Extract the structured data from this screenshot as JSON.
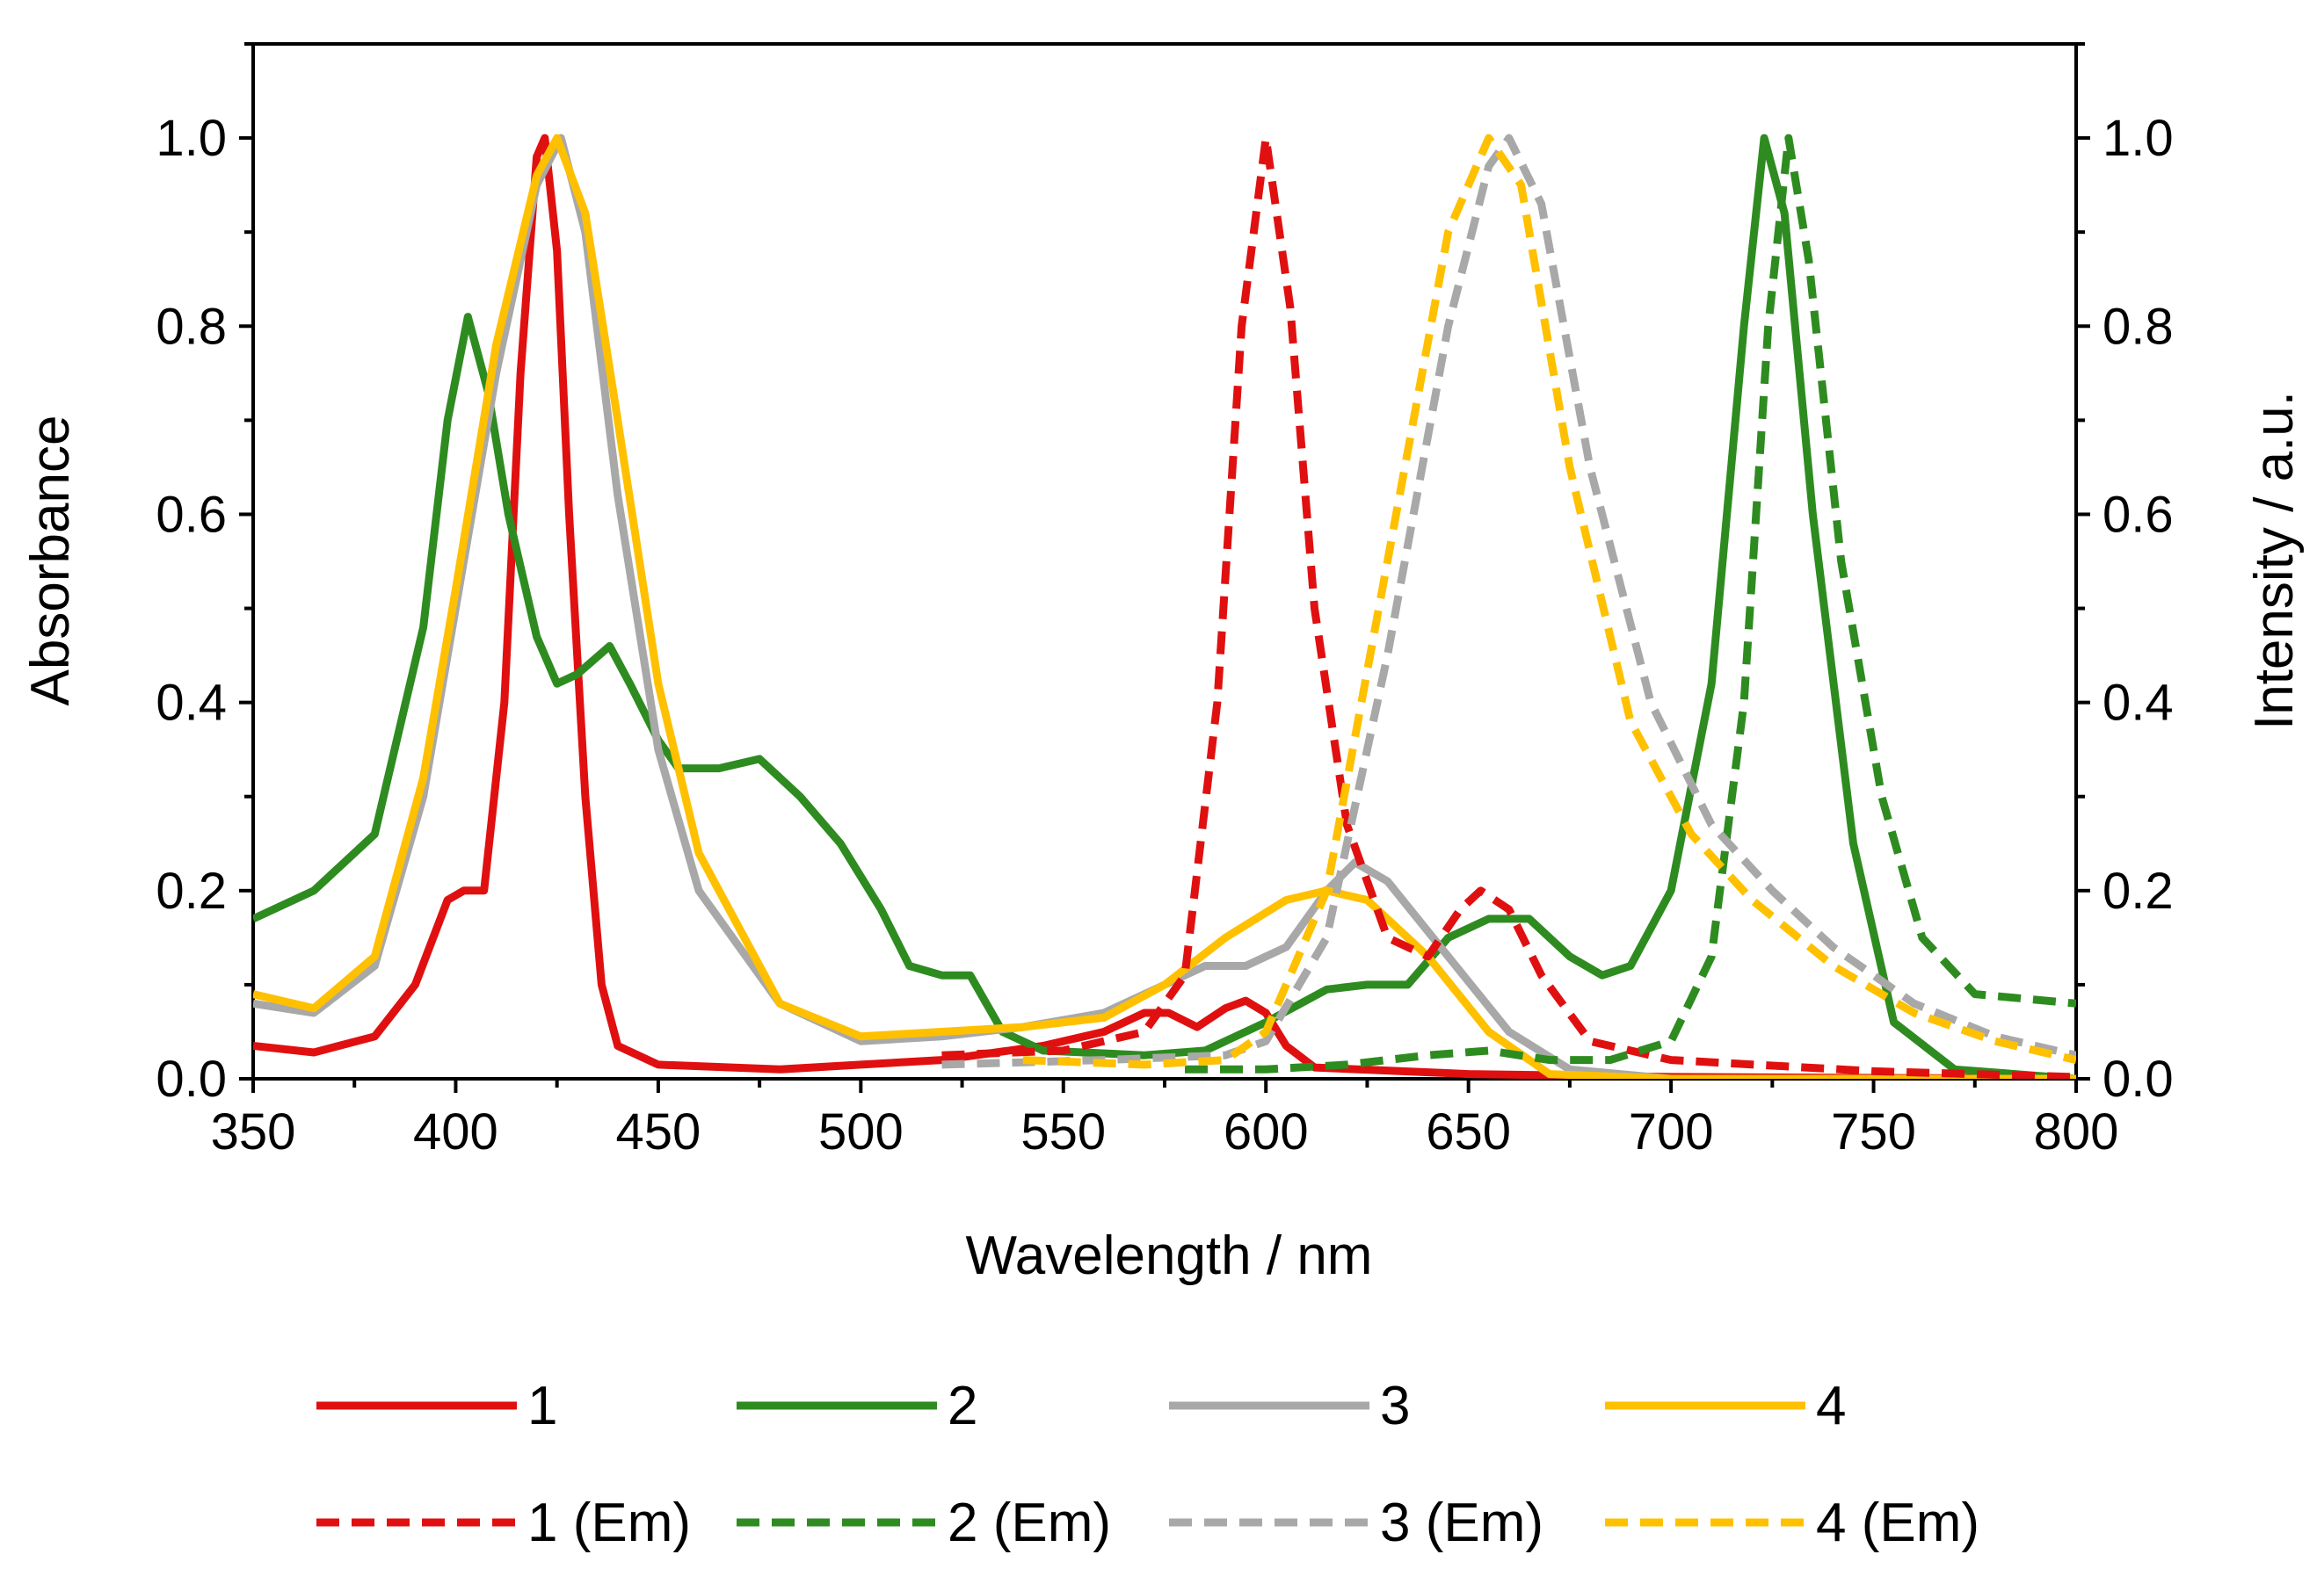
{
  "chart_data": {
    "type": "line",
    "title": "",
    "xlabel": "Wavelength / nm",
    "ylabel": "Absorbance",
    "y2label": "Intensity / a.u.",
    "xlim": [
      350,
      800
    ],
    "ylim": [
      0,
      1.1
    ],
    "y2lim": [
      0,
      1.1
    ],
    "xticks": [
      "350",
      "400",
      "450",
      "500",
      "550",
      "600",
      "650",
      "700",
      "750",
      "800"
    ],
    "yticks": [
      "0.0",
      "0.2",
      "0.4",
      "0.6",
      "0.8",
      "1.0"
    ],
    "y2ticks": [
      "0.0",
      "0.2",
      "0.4",
      "0.6",
      "0.8",
      "1.0"
    ],
    "grid": false,
    "legend_position": "bottom",
    "series": [
      {
        "name": "1",
        "style": "solid",
        "color": "#e01010",
        "axis": "left",
        "points": [
          [
            350,
            0.035
          ],
          [
            365,
            0.028
          ],
          [
            380,
            0.045
          ],
          [
            390,
            0.1
          ],
          [
            398,
            0.19
          ],
          [
            402,
            0.2
          ],
          [
            407,
            0.2
          ],
          [
            412,
            0.4
          ],
          [
            416,
            0.75
          ],
          [
            420,
            0.98
          ],
          [
            422,
            1.0
          ],
          [
            425,
            0.88
          ],
          [
            428,
            0.6
          ],
          [
            432,
            0.3
          ],
          [
            436,
            0.1
          ],
          [
            440,
            0.035
          ],
          [
            450,
            0.015
          ],
          [
            480,
            0.01
          ],
          [
            500,
            0.015
          ],
          [
            520,
            0.02
          ],
          [
            545,
            0.035
          ],
          [
            560,
            0.05
          ],
          [
            570,
            0.07
          ],
          [
            576,
            0.07
          ],
          [
            583,
            0.055
          ],
          [
            590,
            0.075
          ],
          [
            595,
            0.083
          ],
          [
            600,
            0.07
          ],
          [
            605,
            0.035
          ],
          [
            612,
            0.012
          ],
          [
            650,
            0.005
          ],
          [
            700,
            0.002
          ],
          [
            800,
            0.0
          ]
        ]
      },
      {
        "name": "2",
        "style": "solid",
        "color": "#2e8b20",
        "axis": "left",
        "points": [
          [
            350,
            0.17
          ],
          [
            365,
            0.2
          ],
          [
            380,
            0.26
          ],
          [
            392,
            0.48
          ],
          [
            398,
            0.7
          ],
          [
            403,
            0.81
          ],
          [
            408,
            0.73
          ],
          [
            413,
            0.6
          ],
          [
            420,
            0.47
          ],
          [
            425,
            0.42
          ],
          [
            430,
            0.43
          ],
          [
            438,
            0.46
          ],
          [
            443,
            0.42
          ],
          [
            450,
            0.36
          ],
          [
            455,
            0.33
          ],
          [
            465,
            0.33
          ],
          [
            475,
            0.34
          ],
          [
            485,
            0.3
          ],
          [
            495,
            0.25
          ],
          [
            505,
            0.18
          ],
          [
            512,
            0.12
          ],
          [
            520,
            0.11
          ],
          [
            527,
            0.11
          ],
          [
            535,
            0.05
          ],
          [
            545,
            0.03
          ],
          [
            570,
            0.025
          ],
          [
            585,
            0.03
          ],
          [
            600,
            0.06
          ],
          [
            615,
            0.095
          ],
          [
            625,
            0.1
          ],
          [
            635,
            0.1
          ],
          [
            645,
            0.15
          ],
          [
            655,
            0.17
          ],
          [
            665,
            0.17
          ],
          [
            675,
            0.13
          ],
          [
            683,
            0.11
          ],
          [
            690,
            0.12
          ],
          [
            700,
            0.2
          ],
          [
            710,
            0.42
          ],
          [
            718,
            0.8
          ],
          [
            723,
            1.0
          ],
          [
            728,
            0.92
          ],
          [
            735,
            0.6
          ],
          [
            745,
            0.25
          ],
          [
            755,
            0.06
          ],
          [
            770,
            0.01
          ],
          [
            800,
            0.0
          ]
        ]
      },
      {
        "name": "3",
        "style": "solid",
        "color": "#a8a8a8",
        "axis": "left",
        "points": [
          [
            350,
            0.08
          ],
          [
            365,
            0.07
          ],
          [
            380,
            0.12
          ],
          [
            392,
            0.3
          ],
          [
            400,
            0.5
          ],
          [
            410,
            0.75
          ],
          [
            420,
            0.95
          ],
          [
            426,
            1.0
          ],
          [
            432,
            0.9
          ],
          [
            440,
            0.62
          ],
          [
            450,
            0.35
          ],
          [
            460,
            0.2
          ],
          [
            480,
            0.08
          ],
          [
            500,
            0.04
          ],
          [
            520,
            0.045
          ],
          [
            540,
            0.055
          ],
          [
            560,
            0.07
          ],
          [
            575,
            0.1
          ],
          [
            585,
            0.12
          ],
          [
            595,
            0.12
          ],
          [
            605,
            0.14
          ],
          [
            615,
            0.2
          ],
          [
            622,
            0.23
          ],
          [
            630,
            0.21
          ],
          [
            645,
            0.13
          ],
          [
            660,
            0.05
          ],
          [
            675,
            0.01
          ],
          [
            700,
            0.0
          ],
          [
            800,
            0.0
          ]
        ]
      },
      {
        "name": "4",
        "style": "solid",
        "color": "#ffc000",
        "axis": "left",
        "points": [
          [
            350,
            0.09
          ],
          [
            365,
            0.075
          ],
          [
            380,
            0.13
          ],
          [
            392,
            0.32
          ],
          [
            400,
            0.52
          ],
          [
            410,
            0.78
          ],
          [
            420,
            0.96
          ],
          [
            425,
            1.0
          ],
          [
            432,
            0.92
          ],
          [
            440,
            0.7
          ],
          [
            450,
            0.42
          ],
          [
            460,
            0.24
          ],
          [
            480,
            0.08
          ],
          [
            500,
            0.045
          ],
          [
            520,
            0.05
          ],
          [
            540,
            0.055
          ],
          [
            560,
            0.065
          ],
          [
            575,
            0.1
          ],
          [
            590,
            0.15
          ],
          [
            605,
            0.19
          ],
          [
            615,
            0.2
          ],
          [
            625,
            0.19
          ],
          [
            640,
            0.13
          ],
          [
            655,
            0.05
          ],
          [
            670,
            0.005
          ],
          [
            700,
            0.0
          ],
          [
            800,
            0.0
          ]
        ]
      },
      {
        "name": "1 (Em)",
        "style": "dashed",
        "color": "#e01010",
        "axis": "right",
        "points": [
          [
            520,
            0.025
          ],
          [
            550,
            0.03
          ],
          [
            570,
            0.05
          ],
          [
            580,
            0.11
          ],
          [
            588,
            0.4
          ],
          [
            594,
            0.8
          ],
          [
            600,
            1.0
          ],
          [
            606,
            0.82
          ],
          [
            612,
            0.5
          ],
          [
            620,
            0.27
          ],
          [
            630,
            0.15
          ],
          [
            640,
            0.13
          ],
          [
            648,
            0.18
          ],
          [
            653,
            0.2
          ],
          [
            660,
            0.18
          ],
          [
            668,
            0.11
          ],
          [
            680,
            0.04
          ],
          [
            700,
            0.02
          ],
          [
            750,
            0.008
          ],
          [
            800,
            0.002
          ]
        ]
      },
      {
        "name": "2 (Em)",
        "style": "dashed",
        "color": "#2e8b20",
        "axis": "right",
        "points": [
          [
            580,
            0.01
          ],
          [
            600,
            0.01
          ],
          [
            620,
            0.015
          ],
          [
            640,
            0.025
          ],
          [
            655,
            0.03
          ],
          [
            670,
            0.02
          ],
          [
            685,
            0.02
          ],
          [
            700,
            0.04
          ],
          [
            710,
            0.13
          ],
          [
            718,
            0.4
          ],
          [
            724,
            0.8
          ],
          [
            729,
            1.0
          ],
          [
            734,
            0.87
          ],
          [
            742,
            0.55
          ],
          [
            752,
            0.3
          ],
          [
            762,
            0.15
          ],
          [
            775,
            0.09
          ],
          [
            800,
            0.08
          ]
        ]
      },
      {
        "name": "3 (Em)",
        "style": "dashed",
        "color": "#a8a8a8",
        "axis": "right",
        "points": [
          [
            520,
            0.015
          ],
          [
            560,
            0.02
          ],
          [
            590,
            0.025
          ],
          [
            600,
            0.04
          ],
          [
            615,
            0.15
          ],
          [
            630,
            0.45
          ],
          [
            645,
            0.8
          ],
          [
            655,
            0.97
          ],
          [
            660,
            1.0
          ],
          [
            668,
            0.93
          ],
          [
            680,
            0.65
          ],
          [
            695,
            0.4
          ],
          [
            710,
            0.27
          ],
          [
            725,
            0.2
          ],
          [
            740,
            0.14
          ],
          [
            760,
            0.08
          ],
          [
            780,
            0.045
          ],
          [
            800,
            0.025
          ]
        ]
      },
      {
        "name": "4 (Em)",
        "style": "dashed",
        "color": "#ffc000",
        "axis": "right",
        "points": [
          [
            540,
            0.02
          ],
          [
            570,
            0.015
          ],
          [
            590,
            0.02
          ],
          [
            600,
            0.05
          ],
          [
            615,
            0.2
          ],
          [
            630,
            0.55
          ],
          [
            645,
            0.9
          ],
          [
            655,
            1.0
          ],
          [
            663,
            0.95
          ],
          [
            675,
            0.65
          ],
          [
            690,
            0.38
          ],
          [
            705,
            0.26
          ],
          [
            720,
            0.19
          ],
          [
            740,
            0.12
          ],
          [
            760,
            0.07
          ],
          [
            780,
            0.04
          ],
          [
            800,
            0.02
          ]
        ]
      }
    ]
  }
}
